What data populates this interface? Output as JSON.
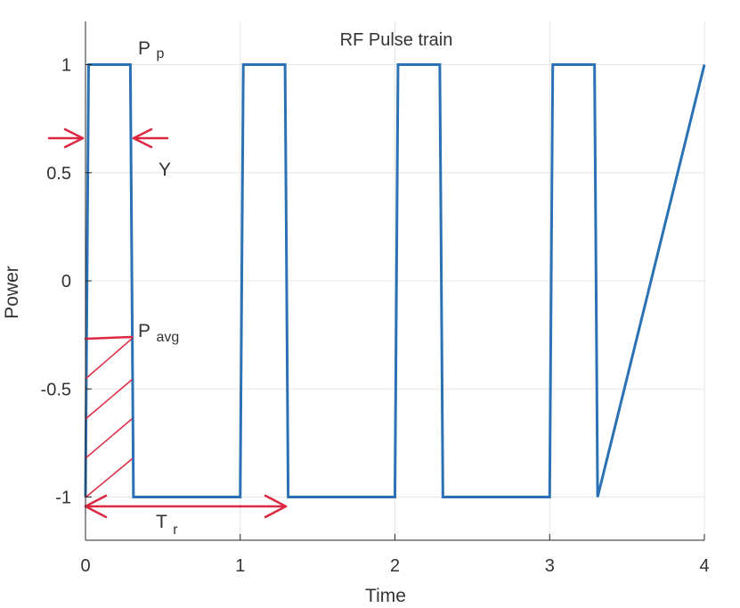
{
  "chart_data": {
    "type": "line",
    "title": "RF Pulse train",
    "xlabel": "Time",
    "ylabel": "Power",
    "xlim": [
      0,
      4
    ],
    "ylim": [
      -1.2,
      1.2
    ],
    "xticks": [
      0,
      1,
      2,
      3,
      4
    ],
    "yticks": [
      -1,
      -0.5,
      0,
      0.5,
      1
    ],
    "x_tick_labels": [
      "0",
      "1",
      "2",
      "3",
      "4"
    ],
    "y_tick_labels": [
      "-1",
      "-0.5",
      "0",
      "0.5",
      "1"
    ],
    "grid": true,
    "series": [
      {
        "x": [
          0,
          0.02,
          0.29,
          0.31,
          1.0,
          1.02,
          1.29,
          1.31,
          2.0,
          2.02,
          2.29,
          2.31,
          3.0,
          3.02,
          3.29,
          3.31,
          4.0
        ],
        "y": [
          -1,
          1,
          1,
          -1,
          -1,
          1,
          1,
          -1,
          -1,
          1,
          1,
          -1,
          -1,
          1,
          1,
          -1,
          1
        ]
      }
    ],
    "annotations": {
      "peak_label": {
        "main": "P",
        "sub": "p"
      },
      "avg_label": {
        "main": "P",
        "sub": "avg"
      },
      "width_label": "Υ",
      "period_label": {
        "main": "T",
        "sub": "r"
      }
    }
  },
  "colors": {
    "line": "#2a72b5",
    "annotation": "#dc2843",
    "grid": "#e6e6e6",
    "axis": "#262626"
  }
}
